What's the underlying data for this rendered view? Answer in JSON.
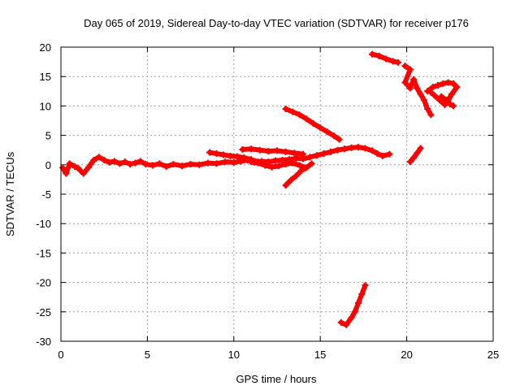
{
  "chart_data": {
    "type": "scatter",
    "title": "Day 065 of 2019, Sidereal Day-to-day VTEC variation (SDTVAR) for receiver p176",
    "xlabel": "GPS time / hours",
    "ylabel": "SDTVAR / TECUs",
    "xlim": [
      0,
      25
    ],
    "ylim": [
      -30,
      20
    ],
    "xticks": [
      0,
      5,
      10,
      15,
      20,
      25
    ],
    "yticks": [
      -30,
      -25,
      -20,
      -15,
      -10,
      -5,
      0,
      5,
      10,
      15,
      20
    ],
    "grid": true,
    "legend": "none",
    "series_color": "#ff0000",
    "series": [
      {
        "values": [
          [
            0.1,
            -0.5
          ],
          [
            0.3,
            -1.5
          ],
          [
            0.5,
            0.2
          ],
          [
            0.8,
            -0.3
          ],
          [
            1.0,
            -0.6
          ],
          [
            1.3,
            -1.5
          ],
          [
            1.6,
            -0.4
          ],
          [
            1.9,
            0.8
          ],
          [
            2.2,
            1.3
          ],
          [
            2.5,
            0.8
          ],
          [
            2.8,
            0.4
          ],
          [
            3.1,
            0.6
          ],
          [
            3.4,
            0.2
          ],
          [
            3.7,
            0.5
          ],
          [
            4.0,
            0.1
          ],
          [
            4.3,
            0.3
          ],
          [
            4.6,
            0.6
          ],
          [
            4.9,
            0.1
          ],
          [
            5.3,
            -0.1
          ],
          [
            5.7,
            0.2
          ],
          [
            6.1,
            -0.3
          ],
          [
            6.5,
            0.1
          ],
          [
            7.0,
            -0.2
          ],
          [
            7.5,
            0.1
          ],
          [
            8.0,
            0.0
          ],
          [
            8.5,
            0.3
          ],
          [
            9.0,
            0.2
          ],
          [
            9.5,
            0.5
          ],
          [
            10.0,
            0.4
          ],
          [
            10.4,
            0.6
          ],
          [
            10.8,
            0.8
          ],
          [
            11.2,
            0.4
          ],
          [
            11.6,
            0.6
          ],
          [
            12.0,
            0.5
          ],
          [
            12.4,
            0.7
          ],
          [
            12.8,
            0.8
          ],
          [
            13.2,
            0.9
          ],
          [
            13.6,
            1.1
          ],
          [
            14.0,
            1.0
          ],
          [
            14.4,
            1.3
          ],
          [
            14.8,
            1.6
          ],
          [
            15.2,
            1.9
          ],
          [
            15.6,
            2.2
          ],
          [
            16.0,
            2.5
          ],
          [
            16.4,
            2.7
          ],
          [
            16.8,
            2.9
          ],
          [
            17.2,
            3.0
          ],
          [
            17.6,
            2.8
          ],
          [
            18.0,
            2.4
          ],
          [
            18.3,
            1.9
          ],
          [
            18.6,
            1.5
          ],
          [
            19.0,
            1.8
          ]
        ]
      },
      {
        "values": [
          [
            11.0,
            0.5
          ],
          [
            11.4,
            0.3
          ],
          [
            11.8,
            -0.1
          ],
          [
            12.2,
            -0.4
          ],
          [
            12.6,
            -0.2
          ],
          [
            13.0,
            0.1
          ],
          [
            13.4,
            0.3
          ],
          [
            13.8,
            -0.1
          ],
          [
            14.2,
            -0.5
          ]
        ]
      },
      {
        "values": [
          [
            13.0,
            -3.5
          ],
          [
            13.3,
            -2.6
          ],
          [
            13.6,
            -1.9
          ],
          [
            13.9,
            -1.0
          ],
          [
            14.2,
            -0.5
          ],
          [
            14.5,
            0.2
          ]
        ]
      },
      {
        "values": [
          [
            8.6,
            2.1
          ],
          [
            9.0,
            1.9
          ],
          [
            9.4,
            1.7
          ],
          [
            9.8,
            1.5
          ],
          [
            10.2,
            1.4
          ],
          [
            10.6,
            1.2
          ],
          [
            11.0,
            0.9
          ],
          [
            11.4,
            0.5
          ]
        ]
      },
      {
        "values": [
          [
            10.5,
            2.6
          ],
          [
            11.0,
            2.7
          ],
          [
            11.5,
            2.5
          ],
          [
            12.0,
            2.3
          ],
          [
            12.5,
            2.4
          ],
          [
            13.0,
            2.2
          ],
          [
            13.5,
            2.0
          ],
          [
            14.0,
            1.8
          ]
        ]
      },
      {
        "values": [
          [
            13.0,
            9.5
          ],
          [
            13.4,
            9.0
          ],
          [
            13.8,
            8.5
          ],
          [
            14.2,
            7.8
          ],
          [
            14.6,
            7.0
          ],
          [
            15.0,
            6.3
          ],
          [
            15.4,
            5.6
          ],
          [
            15.8,
            4.9
          ],
          [
            16.1,
            4.3
          ]
        ]
      },
      {
        "values": [
          [
            16.2,
            -26.8
          ],
          [
            16.5,
            -27.2
          ],
          [
            16.8,
            -26.0
          ],
          [
            17.0,
            -25.0
          ],
          [
            17.2,
            -23.5
          ],
          [
            17.4,
            -22.0
          ],
          [
            17.6,
            -20.5
          ]
        ]
      },
      {
        "values": [
          [
            18.0,
            18.8
          ],
          [
            18.4,
            18.5
          ],
          [
            18.8,
            18.0
          ],
          [
            19.2,
            17.6
          ],
          [
            19.5,
            17.4
          ]
        ]
      },
      {
        "values": [
          [
            19.9,
            16.8
          ],
          [
            20.2,
            16.2
          ],
          [
            19.9,
            14.0
          ],
          [
            20.2,
            13.0
          ],
          [
            20.4,
            14.5
          ],
          [
            20.6,
            13.0
          ],
          [
            20.8,
            12.0
          ],
          [
            21.0,
            11.0
          ],
          [
            21.2,
            9.5
          ],
          [
            21.4,
            8.5
          ]
        ]
      },
      {
        "values": [
          [
            20.2,
            0.5
          ],
          [
            20.4,
            1.2
          ],
          [
            20.6,
            2.0
          ],
          [
            20.8,
            2.8
          ]
        ]
      },
      {
        "values": [
          [
            21.2,
            12.5
          ],
          [
            21.5,
            13.2
          ],
          [
            21.8,
            13.5
          ],
          [
            22.1,
            13.8
          ],
          [
            22.4,
            14.0
          ],
          [
            22.7,
            13.8
          ],
          [
            22.9,
            13.2
          ],
          [
            22.6,
            12.0
          ],
          [
            22.4,
            11.0
          ],
          [
            22.2,
            10.2
          ],
          [
            21.9,
            11.0
          ],
          [
            21.6,
            11.8
          ],
          [
            21.4,
            12.3
          ]
        ]
      },
      {
        "values": [
          [
            22.0,
            11.6
          ],
          [
            22.3,
            11.0
          ],
          [
            22.5,
            10.3
          ],
          [
            22.7,
            10.0
          ]
        ]
      }
    ]
  }
}
